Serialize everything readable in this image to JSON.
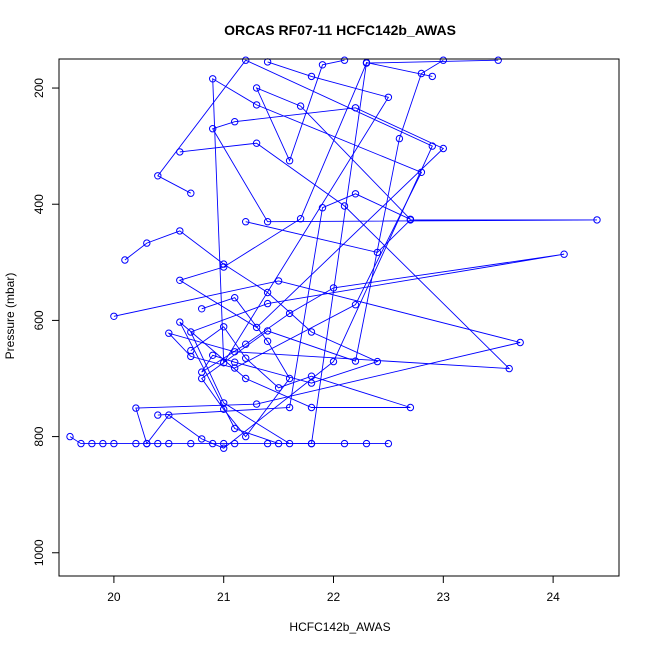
{
  "chart_data": {
    "type": "line",
    "title": "ORCAS RF07-11 HCFC142b_AWAS",
    "xlabel": "HCFC142b_AWAS",
    "ylabel": "Pressure (mbar)",
    "xlim": [
      19.5,
      24.6
    ],
    "ylim": [
      1040,
      150
    ],
    "y_reversed": true,
    "x_ticks": [
      20,
      21,
      22,
      23,
      24
    ],
    "y_ticks": [
      200,
      400,
      600,
      800,
      1000
    ],
    "grid": false,
    "legend": "none",
    "series_color": "#0000ff",
    "marker": "open-circle",
    "series": [
      {
        "x": [
          19.6,
          19.7,
          19.8,
          19.9,
          20.0,
          20.2,
          20.3,
          20.4,
          20.5,
          20.7,
          20.9,
          21.0,
          21.1,
          21.4,
          21.8,
          22.1,
          22.3,
          22.5
        ],
        "y": [
          800,
          812,
          812,
          812,
          812,
          812,
          812,
          812,
          812,
          812,
          812,
          812,
          812,
          812,
          812,
          812,
          812,
          812
        ]
      },
      {
        "x": [
          20.0,
          21.5,
          23.7,
          21.3,
          20.2,
          20.3,
          20.5,
          20.8,
          21.0,
          22.0,
          22.9,
          21.2,
          20.4,
          20.7
        ],
        "y": [
          593,
          532,
          638,
          744,
          751,
          812,
          763,
          804,
          820,
          671,
          300,
          152,
          351,
          381
        ]
      },
      {
        "x": [
          20.1,
          20.3,
          20.6,
          21.0,
          21.4,
          21.8,
          22.4,
          21.8,
          21.1,
          20.9,
          20.8,
          21.2,
          21.6,
          22.0,
          24.1,
          21.4,
          20.7,
          21.0,
          21.6
        ],
        "y": [
          496,
          467,
          446,
          503,
          552,
          620,
          671,
          708,
          672,
          660,
          689,
          641,
          588,
          544,
          486,
          571,
          620,
          742,
          812
        ]
      },
      {
        "x": [
          20.6,
          21.3,
          22.1,
          23.6,
          21.1,
          20.5,
          20.7,
          21.1,
          22.2,
          22.8,
          21.3,
          20.9,
          21.0,
          22.5,
          21.8,
          21.4
        ],
        "y": [
          310,
          295,
          403,
          683,
          654,
          622,
          662,
          682,
          573,
          345,
          229,
          184,
          673,
          216,
          180,
          155
        ]
      },
      {
        "x": [
          21.2,
          22.4,
          22.7,
          24.4,
          21.4,
          20.9,
          21.1,
          22.2,
          23.0,
          21.3,
          20.6,
          21.0,
          21.7,
          22.3,
          23.5
        ],
        "y": [
          430,
          483,
          427,
          427,
          430,
          270,
          258,
          234,
          304,
          612,
          531,
          508,
          425,
          157,
          152
        ]
      },
      {
        "x": [
          20.7,
          21.0,
          21.2,
          21.5,
          21.8,
          22.7,
          21.8,
          21.2,
          20.6,
          21.1,
          21.5,
          21.8,
          22.3,
          22.9
        ],
        "y": [
          652,
          611,
          665,
          716,
          696,
          750,
          750,
          700,
          603,
          786,
          812,
          812,
          156,
          180
        ]
      },
      {
        "x": [
          20.8,
          21.1,
          21.4,
          21.6,
          21.2,
          21.0,
          20.8,
          21.4,
          22.2,
          22.6,
          22.8,
          23.0
        ],
        "y": [
          580,
          561,
          636,
          700,
          800,
          753,
          700,
          618,
          670,
          287,
          175,
          152
        ]
      },
      {
        "x": [
          20.4,
          21.6,
          21.9,
          22.2,
          22.7,
          21.7,
          21.3,
          21.6,
          21.9,
          22.1
        ],
        "y": [
          763,
          750,
          406,
          382,
          426,
          231,
          200,
          325,
          160,
          152
        ]
      }
    ]
  }
}
